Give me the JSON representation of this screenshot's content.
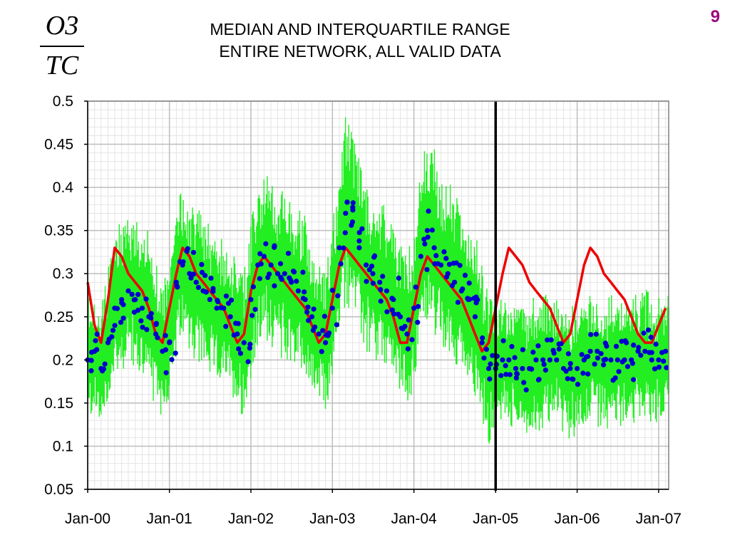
{
  "header": {
    "ratio_numerator": "O3",
    "ratio_denominator": "TC",
    "title_line1": "MEDIAN AND INTERQUARTILE RANGE",
    "title_line2": "ENTIRE NETWORK, ALL VALID DATA",
    "page_number": "9"
  },
  "chart_data": {
    "type": "line",
    "title": "MEDIAN AND INTERQUARTILE RANGE ENTIRE NETWORK, ALL VALID DATA",
    "ylabel": "O3/TC",
    "xlabel": "",
    "ylim": [
      0.05,
      0.5
    ],
    "xlim": [
      "2000-01-01",
      "2007-02-15"
    ],
    "x_tick_labels": [
      "Jan-00",
      "Jan-01",
      "Jan-02",
      "Jan-03",
      "Jan-04",
      "Jan-05",
      "Jan-06",
      "Jan-07"
    ],
    "y_tick_labels": [
      "0.05",
      "0.1",
      "0.15",
      "0.2",
      "0.25",
      "0.3",
      "0.35",
      "0.4",
      "0.45",
      "0.5"
    ],
    "grid": true,
    "vertical_marker": "2005-01-01",
    "colors": {
      "range": "#22ee22",
      "median_points": "#0000cc",
      "reference_line": "#ee0000",
      "marker": "#000000"
    },
    "series": [
      {
        "style": "line",
        "color": "#ee0000",
        "x": [
          "2000-01-01",
          "2000-02-01",
          "2000-03-01",
          "2000-04-01",
          "2000-05-01",
          "2000-06-01",
          "2000-07-01",
          "2000-08-01",
          "2000-09-01",
          "2000-10-01",
          "2000-11-01",
          "2000-12-01",
          "2001-01-01",
          "2001-02-01",
          "2001-03-01",
          "2001-04-01",
          "2001-05-01",
          "2001-06-01",
          "2001-07-01",
          "2001-08-01",
          "2001-09-01",
          "2001-10-01",
          "2001-11-01",
          "2001-12-01",
          "2002-01-01",
          "2002-02-01",
          "2002-03-01",
          "2002-04-01",
          "2002-05-01",
          "2002-06-01",
          "2002-07-01",
          "2002-08-01",
          "2002-09-01",
          "2002-10-01",
          "2002-11-01",
          "2002-12-01",
          "2003-01-01",
          "2003-02-01",
          "2003-03-01",
          "2003-04-01",
          "2003-05-01",
          "2003-06-01",
          "2003-07-01",
          "2003-08-01",
          "2003-09-01",
          "2003-10-01",
          "2003-11-01",
          "2003-12-01",
          "2004-01-01",
          "2004-02-01",
          "2004-03-01",
          "2004-04-01",
          "2004-05-01",
          "2004-06-01",
          "2004-07-01",
          "2004-08-01",
          "2004-09-01",
          "2004-10-01",
          "2004-11-01",
          "2004-12-01",
          "2005-01-01",
          "2005-02-01",
          "2005-03-01",
          "2005-04-01",
          "2005-05-01",
          "2005-06-01",
          "2005-07-01",
          "2005-08-01",
          "2005-09-01",
          "2005-10-01",
          "2005-11-01",
          "2005-12-01",
          "2006-01-01",
          "2006-02-01",
          "2006-03-01",
          "2006-04-01",
          "2006-05-01",
          "2006-06-01",
          "2006-07-01",
          "2006-08-01",
          "2006-09-01",
          "2006-10-01",
          "2006-11-01",
          "2006-12-01",
          "2007-01-01",
          "2007-02-01"
        ],
        "values": [
          0.29,
          0.24,
          0.22,
          0.27,
          0.33,
          0.32,
          0.3,
          0.29,
          0.28,
          0.26,
          0.23,
          0.22,
          0.26,
          0.3,
          0.33,
          0.32,
          0.3,
          0.29,
          0.28,
          0.27,
          0.26,
          0.24,
          0.22,
          0.23,
          0.28,
          0.31,
          0.32,
          0.31,
          0.3,
          0.29,
          0.28,
          0.27,
          0.26,
          0.24,
          0.22,
          0.23,
          0.27,
          0.31,
          0.33,
          0.32,
          0.31,
          0.3,
          0.29,
          0.28,
          0.27,
          0.25,
          0.22,
          0.22,
          0.26,
          0.3,
          0.32,
          0.31,
          0.3,
          0.29,
          0.28,
          0.27,
          0.25,
          0.23,
          0.21,
          0.22,
          0.26,
          0.3,
          0.33,
          0.32,
          0.31,
          0.29,
          0.28,
          0.27,
          0.26,
          0.24,
          0.22,
          0.23,
          0.27,
          0.31,
          0.33,
          0.32,
          0.3,
          0.29,
          0.28,
          0.27,
          0.25,
          0.23,
          0.22,
          0.22,
          0.24,
          0.26
        ]
      },
      {
        "style": "points",
        "color": "#0000cc",
        "x": [
          "2000-01-01",
          "2000-02-01",
          "2000-03-01",
          "2000-04-01",
          "2000-05-01",
          "2000-06-01",
          "2000-07-01",
          "2000-08-01",
          "2000-09-01",
          "2000-10-01",
          "2000-11-01",
          "2000-12-01",
          "2001-01-01",
          "2001-02-01",
          "2001-03-01",
          "2001-04-01",
          "2001-05-01",
          "2001-06-01",
          "2001-07-01",
          "2001-08-01",
          "2001-09-01",
          "2001-10-01",
          "2001-11-01",
          "2001-12-01",
          "2002-01-01",
          "2002-02-01",
          "2002-03-01",
          "2002-04-01",
          "2002-05-01",
          "2002-06-01",
          "2002-07-01",
          "2002-08-01",
          "2002-09-01",
          "2002-10-01",
          "2002-11-01",
          "2002-12-01",
          "2003-01-01",
          "2003-02-01",
          "2003-03-01",
          "2003-04-01",
          "2003-05-01",
          "2003-06-01",
          "2003-07-01",
          "2003-08-01",
          "2003-09-01",
          "2003-10-01",
          "2003-11-01",
          "2003-12-01",
          "2004-01-01",
          "2004-02-01",
          "2004-03-01",
          "2004-04-01",
          "2004-05-01",
          "2004-06-01",
          "2004-07-01",
          "2004-08-01",
          "2004-09-01",
          "2004-10-01",
          "2004-11-01",
          "2004-12-01",
          "2005-01-01",
          "2005-02-01",
          "2005-03-01",
          "2005-04-01",
          "2005-05-01",
          "2005-06-01",
          "2005-07-01",
          "2005-08-01",
          "2005-09-01",
          "2005-10-01",
          "2005-11-01",
          "2005-12-01",
          "2006-01-01",
          "2006-02-01",
          "2006-03-01",
          "2006-04-01",
          "2006-05-01",
          "2006-06-01",
          "2006-07-01",
          "2006-08-01",
          "2006-09-01",
          "2006-10-01",
          "2006-11-01",
          "2006-12-01",
          "2007-01-01",
          "2007-02-01"
        ],
        "values": [
          0.2,
          0.21,
          0.19,
          0.22,
          0.26,
          0.27,
          0.28,
          0.27,
          0.26,
          0.25,
          0.23,
          0.21,
          0.22,
          0.29,
          0.31,
          0.3,
          0.29,
          0.28,
          0.27,
          0.26,
          0.26,
          0.25,
          0.23,
          0.22,
          0.27,
          0.31,
          0.32,
          0.31,
          0.3,
          0.3,
          0.29,
          0.28,
          0.27,
          0.25,
          0.23,
          0.22,
          0.26,
          0.33,
          0.37,
          0.36,
          0.33,
          0.31,
          0.3,
          0.29,
          0.28,
          0.27,
          0.25,
          0.23,
          0.26,
          0.32,
          0.35,
          0.33,
          0.31,
          0.3,
          0.29,
          0.28,
          0.27,
          0.25,
          0.22,
          0.19,
          0.19,
          0.2,
          0.2,
          0.19,
          0.19,
          0.19,
          0.2,
          0.2,
          0.2,
          0.2,
          0.19,
          0.19,
          0.19,
          0.2,
          0.21,
          0.21,
          0.2,
          0.2,
          0.2,
          0.2,
          0.2,
          0.21,
          0.21,
          0.2,
          0.2,
          0.21
        ]
      },
      {
        "style": "band",
        "color": "#22ee22",
        "x": [
          "2000-01-01",
          "2000-02-01",
          "2000-03-01",
          "2000-04-01",
          "2000-05-01",
          "2000-06-01",
          "2000-07-01",
          "2000-08-01",
          "2000-09-01",
          "2000-10-01",
          "2000-11-01",
          "2000-12-01",
          "2001-01-01",
          "2001-02-01",
          "2001-03-01",
          "2001-04-01",
          "2001-05-01",
          "2001-06-01",
          "2001-07-01",
          "2001-08-01",
          "2001-09-01",
          "2001-10-01",
          "2001-11-01",
          "2001-12-01",
          "2002-01-01",
          "2002-02-01",
          "2002-03-01",
          "2002-04-01",
          "2002-05-01",
          "2002-06-01",
          "2002-07-01",
          "2002-08-01",
          "2002-09-01",
          "2002-10-01",
          "2002-11-01",
          "2002-12-01",
          "2003-01-01",
          "2003-02-01",
          "2003-03-01",
          "2003-04-01",
          "2003-05-01",
          "2003-06-01",
          "2003-07-01",
          "2003-08-01",
          "2003-09-01",
          "2003-10-01",
          "2003-11-01",
          "2003-12-01",
          "2004-01-01",
          "2004-02-01",
          "2004-03-01",
          "2004-04-01",
          "2004-05-01",
          "2004-06-01",
          "2004-07-01",
          "2004-08-01",
          "2004-09-01",
          "2004-10-01",
          "2004-11-01",
          "2004-12-01",
          "2005-01-01",
          "2005-02-01",
          "2005-03-01",
          "2005-04-01",
          "2005-05-01",
          "2005-06-01",
          "2005-07-01",
          "2005-08-01",
          "2005-09-01",
          "2005-10-01",
          "2005-11-01",
          "2005-12-01",
          "2006-01-01",
          "2006-02-01",
          "2006-03-01",
          "2006-04-01",
          "2006-05-01",
          "2006-06-01",
          "2006-07-01",
          "2006-08-01",
          "2006-09-01",
          "2006-10-01",
          "2006-11-01",
          "2006-12-01",
          "2007-01-01",
          "2007-02-01"
        ],
        "low": [
          0.14,
          0.15,
          0.13,
          0.16,
          0.19,
          0.2,
          0.21,
          0.2,
          0.19,
          0.18,
          0.16,
          0.15,
          0.16,
          0.21,
          0.23,
          0.22,
          0.21,
          0.2,
          0.19,
          0.19,
          0.18,
          0.17,
          0.16,
          0.15,
          0.18,
          0.22,
          0.24,
          0.23,
          0.22,
          0.21,
          0.21,
          0.2,
          0.19,
          0.17,
          0.16,
          0.15,
          0.18,
          0.24,
          0.28,
          0.27,
          0.24,
          0.22,
          0.21,
          0.2,
          0.2,
          0.19,
          0.17,
          0.16,
          0.18,
          0.23,
          0.26,
          0.24,
          0.22,
          0.21,
          0.2,
          0.2,
          0.19,
          0.17,
          0.14,
          0.11,
          0.13,
          0.14,
          0.14,
          0.13,
          0.13,
          0.12,
          0.13,
          0.13,
          0.14,
          0.14,
          0.13,
          0.12,
          0.13,
          0.14,
          0.14,
          0.14,
          0.13,
          0.13,
          0.14,
          0.14,
          0.14,
          0.14,
          0.14,
          0.14,
          0.14,
          0.15
        ],
        "high": [
          0.26,
          0.27,
          0.25,
          0.29,
          0.34,
          0.35,
          0.36,
          0.35,
          0.34,
          0.33,
          0.3,
          0.28,
          0.29,
          0.37,
          0.39,
          0.38,
          0.37,
          0.36,
          0.35,
          0.34,
          0.33,
          0.32,
          0.3,
          0.29,
          0.35,
          0.39,
          0.41,
          0.4,
          0.39,
          0.38,
          0.37,
          0.36,
          0.35,
          0.33,
          0.3,
          0.29,
          0.34,
          0.42,
          0.47,
          0.46,
          0.43,
          0.4,
          0.39,
          0.38,
          0.37,
          0.35,
          0.33,
          0.31,
          0.34,
          0.41,
          0.45,
          0.43,
          0.4,
          0.39,
          0.38,
          0.37,
          0.35,
          0.33,
          0.3,
          0.26,
          0.25,
          0.26,
          0.26,
          0.25,
          0.25,
          0.25,
          0.26,
          0.26,
          0.26,
          0.26,
          0.25,
          0.25,
          0.25,
          0.26,
          0.27,
          0.27,
          0.26,
          0.26,
          0.26,
          0.26,
          0.26,
          0.27,
          0.27,
          0.26,
          0.26,
          0.27
        ]
      }
    ]
  }
}
